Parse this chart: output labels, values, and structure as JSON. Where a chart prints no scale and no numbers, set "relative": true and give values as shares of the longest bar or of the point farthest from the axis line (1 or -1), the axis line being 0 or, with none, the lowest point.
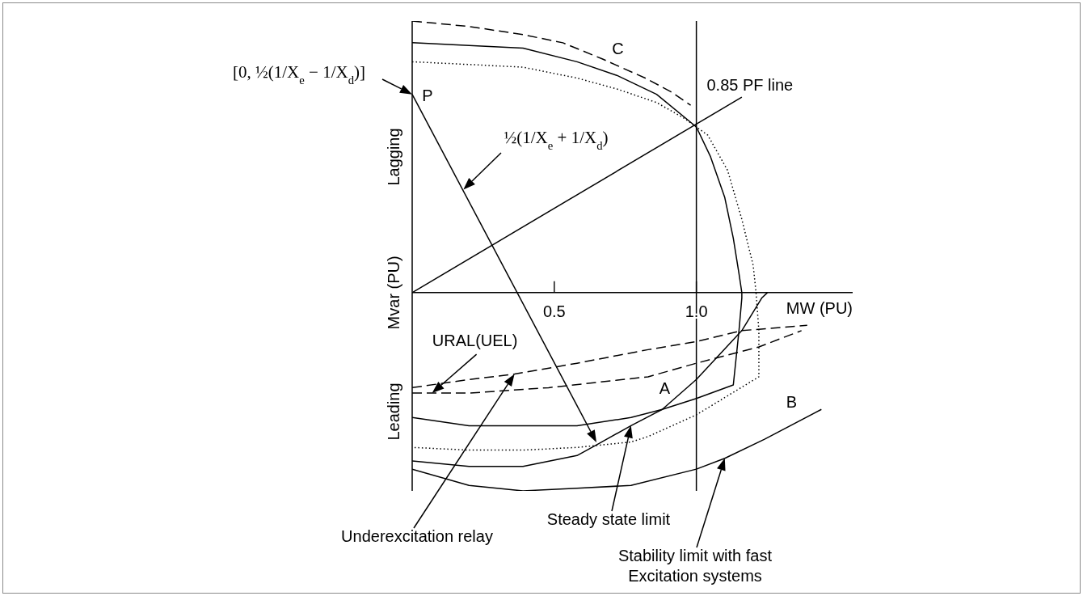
{
  "chart_data": {
    "type": "line",
    "xlabel": "MW (PU)",
    "ylabel": "Mvar (PU)",
    "relative": true,
    "xlim": [
      0,
      1.55
    ],
    "xticks": [
      0.5,
      {
        "value": 1,
        "label": "1.0"
      }
    ],
    "tick_labels": "x",
    "ref_lines": [
      {
        "axis": "x",
        "value": 1,
        "color": "#000000"
      }
    ],
    "series": [
      {
        "name": "C",
        "color": "#000000",
        "line_style": "dashed",
        "x": [
          0,
          0.2,
          0.39,
          0.53,
          0.67,
          0.82,
          0.91,
          0.98
        ],
        "values": [
          1,
          0.98,
          0.95,
          0.92,
          0.86,
          0.79,
          0.74,
          0.69
        ]
      },
      {
        "name": "A",
        "color": "#000000",
        "line_style": "solid",
        "x": [
          0,
          0.2,
          0.39,
          0.58,
          0.72,
          0.86,
          1,
          1.05,
          1.1,
          1.13,
          1.15,
          1.16,
          1.16,
          1.15,
          1.13,
          1,
          0.88,
          0.77,
          0.58,
          0.39,
          0.2,
          0
        ],
        "values": [
          0.92,
          0.91,
          0.9,
          0.85,
          0.8,
          0.73,
          0.61,
          0.5,
          0.35,
          0.2,
          0.07,
          0,
          -0.02,
          -0.14,
          -0.34,
          -0.39,
          -0.43,
          -0.46,
          -0.49,
          -0.49,
          -0.49,
          -0.46
        ]
      },
      {
        "color": "#000000",
        "line_style": "dotted",
        "x": [
          0,
          0.2,
          0.39,
          0.58,
          0.72,
          0.86,
          0.96,
          1,
          1.04,
          1.11,
          1.16,
          1.2,
          1.21,
          1.22,
          1.22,
          1,
          0.83,
          0.77,
          0.58,
          0.39,
          0.2,
          0
        ],
        "values": [
          0.85,
          0.84,
          0.83,
          0.79,
          0.75,
          0.7,
          0.64,
          0.61,
          0.58,
          0.45,
          0.27,
          0.1,
          0,
          -0.14,
          -0.31,
          -0.45,
          -0.53,
          -0.55,
          -0.57,
          -0.58,
          -0.58,
          -0.57
        ]
      },
      {
        "color": "#000000",
        "line_style": "solid",
        "x": [
          0,
          0.2,
          0.39,
          0.58,
          0.65,
          0.77,
          0.88,
          1,
          1.16,
          1.23,
          1.25
        ],
        "values": [
          -0.62,
          -0.64,
          -0.64,
          -0.6,
          -0.56,
          -0.49,
          -0.43,
          -0.32,
          -0.14,
          -0.02,
          0
        ]
      },
      {
        "name": "B",
        "color": "#000000",
        "line_style": "solid",
        "x": [
          0,
          0.2,
          0.39,
          0.58,
          0.77,
          1,
          1.1,
          1.24,
          1.44
        ],
        "values": [
          -0.65,
          -0.71,
          -0.73,
          -0.72,
          -0.71,
          -0.65,
          -0.61,
          -0.54,
          -0.43
        ]
      },
      {
        "color": "#000000",
        "line_style": "dashed",
        "x": [
          0,
          0.2,
          0.36,
          0.58,
          0.83,
          1,
          1.16,
          1.39
        ],
        "values": [
          -0.35,
          -0.32,
          -0.3,
          -0.26,
          -0.21,
          -0.18,
          -0.14,
          -0.12
        ]
      },
      {
        "color": "#000000",
        "line_style": "dashed",
        "x": [
          0,
          0.2,
          0.48,
          0.83,
          1,
          1.22,
          1.37
        ],
        "values": [
          -0.37,
          -0.37,
          -0.35,
          -0.31,
          -0.26,
          -0.2,
          -0.14
        ]
      },
      {
        "name": "0.85 PF line",
        "color": "#000000",
        "line_style": "solid",
        "x": [
          0,
          1.16
        ],
        "values": [
          0,
          0.72
        ]
      }
    ],
    "annotations": [
      "[0, ½(1/X$_{e}$ − 1/X$_{d}$)]",
      "P",
      "½(1/X$_{e}$ + 1/X$_{d}$)",
      {
        "text": "URAL(UEL)",
        "x": 0.07,
        "y": -0.37
      },
      "Underexcitation relay",
      "Steady state limit",
      "Stability limit with fast\nExcitation systems",
      "Lagging",
      "Leading"
    ]
  }
}
